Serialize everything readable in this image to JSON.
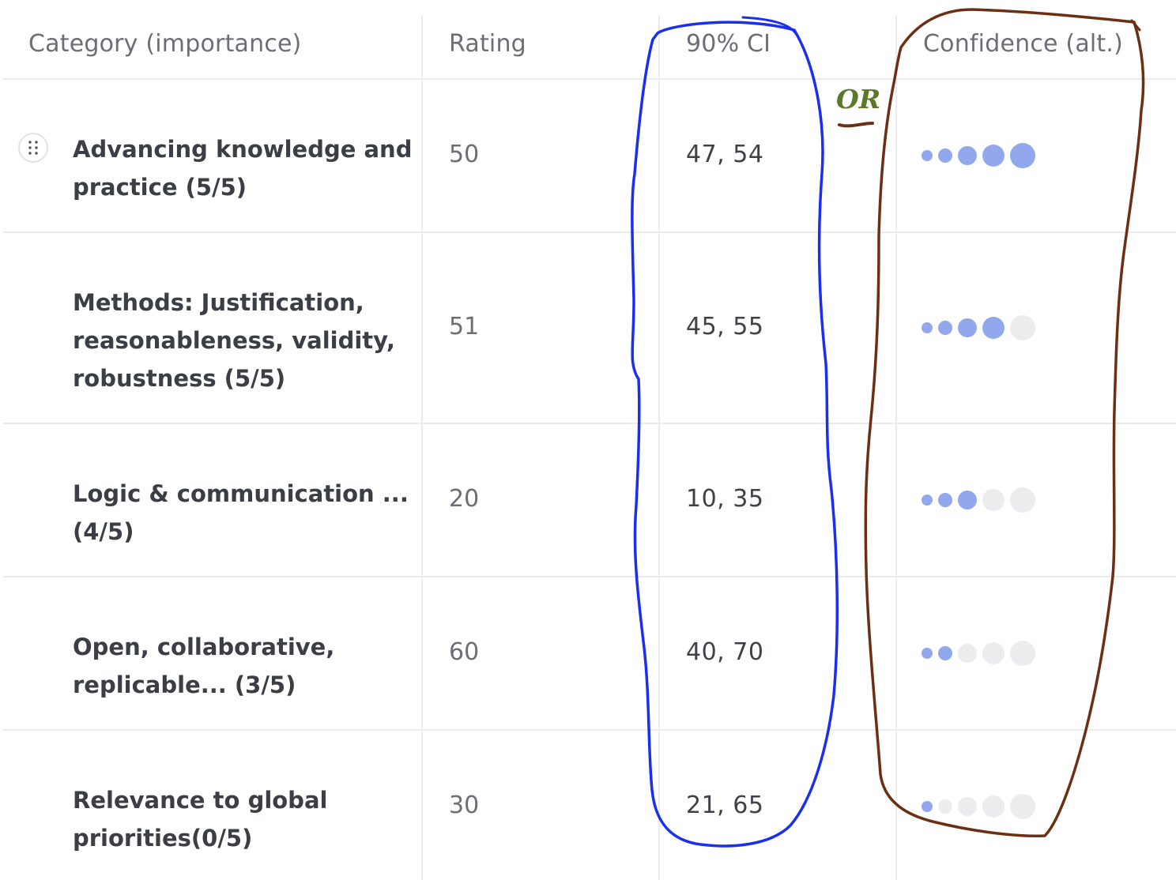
{
  "table": {
    "columns": [
      "Category (importance)",
      "Rating",
      "90% CI",
      "Confidence (alt.)"
    ],
    "rows": [
      {
        "category": "Advancing knowledge and practice (5/5)",
        "rating": "50",
        "ci": "47, 54",
        "confidence": 5
      },
      {
        "category": "Methods: Justification, reasonableness, validity, robustness (5/5)",
        "rating": "51",
        "ci": "45, 55",
        "confidence": 4
      },
      {
        "category": "Logic & communication ... (4/5)",
        "rating": "20",
        "ci": "10, 35",
        "confidence": 3
      },
      {
        "category": "Open, collaborative, replicable... (3/5)",
        "rating": "60",
        "ci": "40, 70",
        "confidence": 2
      },
      {
        "category": "Relevance to global priorities(0/5)",
        "rating": "30",
        "ci": "21, 65",
        "confidence": 1
      }
    ]
  },
  "annotation": {
    "or_label": "OR",
    "ci_loop_color": "#1a2ff0",
    "confidence_loop_color": "#6b2f14",
    "or_color": "#5a7a2a"
  },
  "colors": {
    "dot_filled": "#93a8ec",
    "dot_empty": "#ececee",
    "grid": "#ebebeb"
  },
  "icons": {
    "drag_handle": "drag-handle-icon"
  }
}
